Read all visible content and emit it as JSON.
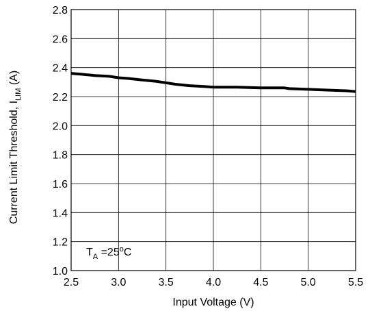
{
  "chart_data": {
    "type": "line",
    "xlabel": "Input Voltage (V)",
    "ylabel": {
      "main": "Current Limit Threshold, I",
      "sub": "LIM",
      "unit": " (A)"
    },
    "x_ticks": [
      "2.5",
      "3.0",
      "3.5",
      "4.0",
      "4.5",
      "5.0",
      "5.5"
    ],
    "y_ticks": [
      "1.0",
      "1.2",
      "1.4",
      "1.6",
      "1.8",
      "2.0",
      "2.2",
      "2.4",
      "2.6",
      "2.8"
    ],
    "xlim": [
      2.5,
      5.5
    ],
    "ylim": [
      1.0,
      2.8
    ],
    "grid": true,
    "annotation": {
      "main": "T",
      "sub": "A",
      "rest": " =25",
      "sup": "o",
      "tail": "C"
    },
    "series": [
      {
        "x": [
          2.5,
          2.6,
          2.75,
          2.9,
          3.0,
          3.1,
          3.25,
          3.4,
          3.5,
          3.6,
          3.75,
          3.9,
          4.0,
          4.25,
          4.5,
          4.75,
          4.8,
          5.0,
          5.2,
          5.4,
          5.5
        ],
        "y": [
          2.36,
          2.355,
          2.345,
          2.34,
          2.33,
          2.325,
          2.315,
          2.305,
          2.295,
          2.285,
          2.275,
          2.27,
          2.265,
          2.265,
          2.26,
          2.26,
          2.255,
          2.25,
          2.245,
          2.24,
          2.235
        ]
      }
    ]
  }
}
